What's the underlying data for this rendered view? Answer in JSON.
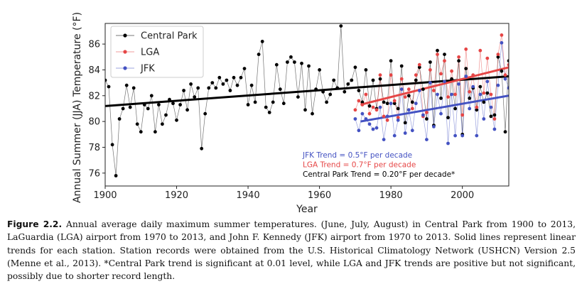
{
  "chart_data": {
    "type": "line",
    "xlabel": "Year",
    "ylabel": "Annual Summer (JJA) Temperature (°F)",
    "xlim": [
      1900,
      2013
    ],
    "ylim": [
      75,
      87.6
    ],
    "xticks": [
      1900,
      1920,
      1940,
      1960,
      1980,
      2000
    ],
    "yticks": [
      76,
      78,
      80,
      82,
      84,
      86
    ],
    "grid": false,
    "legend_position": "top-left",
    "series": [
      {
        "name": "Central Park",
        "color": "#000000",
        "x": [
          1900,
          1901,
          1902,
          1903,
          1904,
          1905,
          1906,
          1907,
          1908,
          1909,
          1910,
          1911,
          1912,
          1913,
          1914,
          1915,
          1916,
          1917,
          1918,
          1919,
          1920,
          1921,
          1922,
          1923,
          1924,
          1925,
          1926,
          1927,
          1928,
          1929,
          1930,
          1931,
          1932,
          1933,
          1934,
          1935,
          1936,
          1937,
          1938,
          1939,
          1940,
          1941,
          1942,
          1943,
          1944,
          1945,
          1946,
          1947,
          1948,
          1949,
          1950,
          1951,
          1952,
          1953,
          1954,
          1955,
          1956,
          1957,
          1958,
          1959,
          1960,
          1961,
          1962,
          1963,
          1964,
          1965,
          1966,
          1967,
          1968,
          1969,
          1970,
          1971,
          1972,
          1973,
          1974,
          1975,
          1976,
          1977,
          1978,
          1979,
          1980,
          1981,
          1982,
          1983,
          1984,
          1985,
          1986,
          1987,
          1988,
          1989,
          1990,
          1991,
          1992,
          1993,
          1994,
          1995,
          1996,
          1997,
          1998,
          1999,
          2000,
          2001,
          2002,
          2003,
          2004,
          2005,
          2006,
          2007,
          2008,
          2009,
          2010,
          2011,
          2012,
          2013
        ],
        "values": [
          83.2,
          82.7,
          78.2,
          75.8,
          80.2,
          81.0,
          82.8,
          81.1,
          82.6,
          79.8,
          79.2,
          81.3,
          81.0,
          82.0,
          79.2,
          81.3,
          79.8,
          80.5,
          81.7,
          81.4,
          80.1,
          81.3,
          82.4,
          80.9,
          82.9,
          81.9,
          82.6,
          77.9,
          80.6,
          82.6,
          83.0,
          82.6,
          83.4,
          82.9,
          83.2,
          82.4,
          83.4,
          82.8,
          83.4,
          84.1,
          81.3,
          82.8,
          81.5,
          85.2,
          86.2,
          81.1,
          80.7,
          81.5,
          84.4,
          82.5,
          81.4,
          84.6,
          85.0,
          84.6,
          81.9,
          84.5,
          80.9,
          84.3,
          80.6,
          82.5,
          84.0,
          82.3,
          81.5,
          82.1,
          83.2,
          82.6,
          87.4,
          82.3,
          82.9,
          83.2,
          84.2,
          82.4,
          81.5,
          84.0,
          81.2,
          83.2,
          81.0,
          83.3,
          81.5,
          81.4,
          84.7,
          81.4,
          81.0,
          84.3,
          79.9,
          82.0,
          81.5,
          83.2,
          84.2,
          82.5,
          80.2,
          84.6,
          79.7,
          85.5,
          81.8,
          85.2,
          80.3,
          83.3,
          81.0,
          84.7,
          79.0,
          84.1,
          81.8,
          82.6,
          80.9,
          82.7,
          81.5,
          82.2,
          80.4,
          80.5,
          85.0,
          83.9,
          79.2,
          84.7
        ]
      },
      {
        "name": "LGA",
        "color": "#e64646",
        "x": [
          1970,
          1971,
          1972,
          1973,
          1974,
          1975,
          1976,
          1977,
          1978,
          1979,
          1980,
          1981,
          1982,
          1983,
          1984,
          1985,
          1986,
          1987,
          1988,
          1989,
          1990,
          1991,
          1992,
          1993,
          1994,
          1995,
          1996,
          1997,
          1998,
          1999,
          2000,
          2001,
          2002,
          2003,
          2004,
          2005,
          2006,
          2007,
          2008,
          2009,
          2010,
          2011,
          2012,
          2013
        ],
        "values": [
          80.9,
          81.6,
          81.3,
          82.1,
          80.6,
          81.1,
          80.9,
          83.6,
          80.4,
          80.1,
          83.6,
          81.6,
          80.3,
          83.3,
          81.9,
          82.5,
          81.0,
          83.6,
          84.4,
          80.4,
          80.7,
          84.0,
          82.4,
          85.2,
          83.7,
          84.7,
          81.9,
          83.9,
          82.1,
          85.0,
          80.5,
          85.6,
          82.3,
          83.6,
          81.1,
          85.5,
          82.2,
          84.9,
          82.1,
          80.2,
          85.2,
          86.7,
          83.6,
          84.4
        ]
      },
      {
        "name": "JFK",
        "color": "#4452c2",
        "x": [
          1970,
          1971,
          1972,
          1973,
          1974,
          1975,
          1976,
          1977,
          1978,
          1979,
          1980,
          1981,
          1982,
          1983,
          1984,
          1985,
          1986,
          1987,
          1988,
          1989,
          1990,
          1991,
          1992,
          1993,
          1994,
          1995,
          1996,
          1997,
          1998,
          1999,
          2000,
          2001,
          2002,
          2003,
          2004,
          2005,
          2006,
          2007,
          2008,
          2009,
          2010,
          2011,
          2012,
          2013
        ],
        "values": [
          80.2,
          79.3,
          80.6,
          80.2,
          79.8,
          79.4,
          79.5,
          81.1,
          78.6,
          80.4,
          81.4,
          78.9,
          80.1,
          82.5,
          79.1,
          80.9,
          79.3,
          81.4,
          82.4,
          80.5,
          78.6,
          83.0,
          79.6,
          82.1,
          80.6,
          83.1,
          78.3,
          82.1,
          78.9,
          82.9,
          78.9,
          83.5,
          81.0,
          82.7,
          78.9,
          82.1,
          80.2,
          83.1,
          81.1,
          79.4,
          82.8,
          86.1,
          83.3,
          82.6
        ]
      }
    ],
    "trend_lines": [
      {
        "series": "Central Park",
        "x": [
          1900,
          2013
        ],
        "y": [
          81.2,
          83.5
        ]
      },
      {
        "series": "LGA",
        "x": [
          1971.5,
          2013
        ],
        "y": [
          81.3,
          84.2
        ]
      },
      {
        "series": "JFK",
        "x": [
          1971.5,
          2013
        ],
        "y": [
          80.0,
          82.0
        ]
      }
    ],
    "annotations": [
      {
        "text": "JFK Trend = 0.5°F per decade",
        "color": "#4452c2"
      },
      {
        "text": "LGA Trend = 0.7°F per decade",
        "color": "#e64646"
      },
      {
        "text": "Central Park Trend = 0.20°F per decade*",
        "color": "#000000"
      }
    ]
  },
  "caption": {
    "label": "Figure 2.2.",
    "text": "Annual average daily maximum summer temperatures. (June, July, August) in Central Park from 1900 to 2013, LaGuardia (LGA) airport from 1970 to 2013, and John F. Kennedy (JFK) airport from 1970 to 2013. Solid lines represent linear trends for each station. Station records were obtained from the U.S. Historical Climatology Network (USHCN) Version 2.5 (Menne et al., 2013). *Central Park trend is significant at 0.01 level, while LGA and JFK trends are positive but not significant, possibly due to shorter record length."
  }
}
